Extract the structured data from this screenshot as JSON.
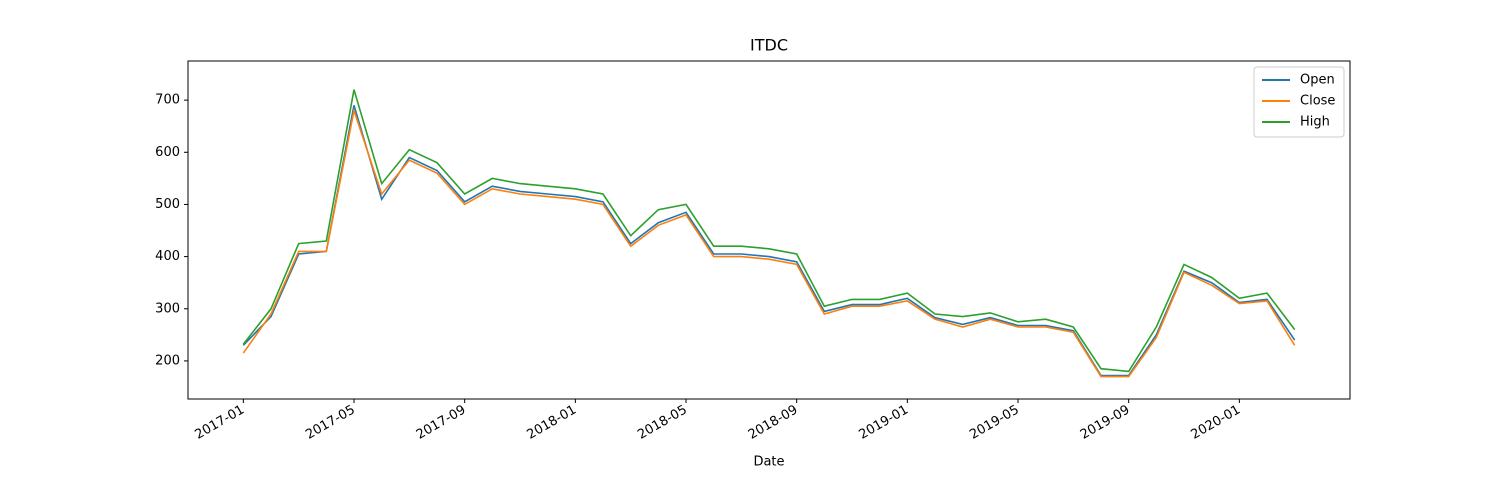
{
  "chart_data": {
    "type": "line",
    "title": "ITDC",
    "xlabel": "Date",
    "x": [
      "2017-01",
      "2017-02",
      "2017-03",
      "2017-04",
      "2017-05",
      "2017-06",
      "2017-07",
      "2017-08",
      "2017-09",
      "2017-10",
      "2017-11",
      "2017-12",
      "2018-01",
      "2018-02",
      "2018-03",
      "2018-04",
      "2018-05",
      "2018-06",
      "2018-07",
      "2018-08",
      "2018-09",
      "2018-10",
      "2018-11",
      "2018-12",
      "2019-01",
      "2019-02",
      "2019-03",
      "2019-04",
      "2019-05",
      "2019-06",
      "2019-07",
      "2019-08",
      "2019-09",
      "2019-10",
      "2019-11",
      "2019-12",
      "2020-01",
      "2020-02",
      "2020-03"
    ],
    "series": [
      {
        "name": "Open",
        "color": "#1f77b4",
        "values": [
          230,
          285,
          405,
          410,
          690,
          510,
          590,
          565,
          505,
          535,
          525,
          520,
          515,
          505,
          425,
          465,
          485,
          405,
          405,
          400,
          390,
          295,
          308,
          308,
          320,
          283,
          270,
          283,
          268,
          268,
          258,
          172,
          172,
          250,
          372,
          350,
          312,
          318,
          240
        ]
      },
      {
        "name": "Close",
        "color": "#ff7f0e",
        "values": [
          215,
          290,
          410,
          410,
          680,
          520,
          585,
          560,
          500,
          530,
          520,
          515,
          510,
          500,
          420,
          460,
          480,
          400,
          400,
          395,
          385,
          290,
          305,
          305,
          315,
          280,
          265,
          280,
          265,
          265,
          255,
          170,
          170,
          245,
          370,
          345,
          310,
          315,
          230
        ]
      },
      {
        "name": "High",
        "color": "#2ca02c",
        "values": [
          232,
          300,
          425,
          430,
          720,
          540,
          605,
          580,
          520,
          550,
          540,
          535,
          530,
          520,
          440,
          490,
          500,
          420,
          420,
          415,
          405,
          305,
          318,
          318,
          330,
          290,
          285,
          292,
          275,
          280,
          265,
          185,
          180,
          265,
          385,
          360,
          320,
          330,
          260
        ]
      }
    ],
    "xlim": [
      "2016-11",
      "2020-05"
    ],
    "xticks": [
      "2017-01",
      "2017-05",
      "2017-09",
      "2018-01",
      "2018-05",
      "2018-09",
      "2019-01",
      "2019-05",
      "2019-09",
      "2020-01"
    ],
    "ylim": [
      127,
      775
    ],
    "yticks": [
      200,
      300,
      400,
      500,
      600,
      700
    ],
    "legend": "upper right"
  }
}
